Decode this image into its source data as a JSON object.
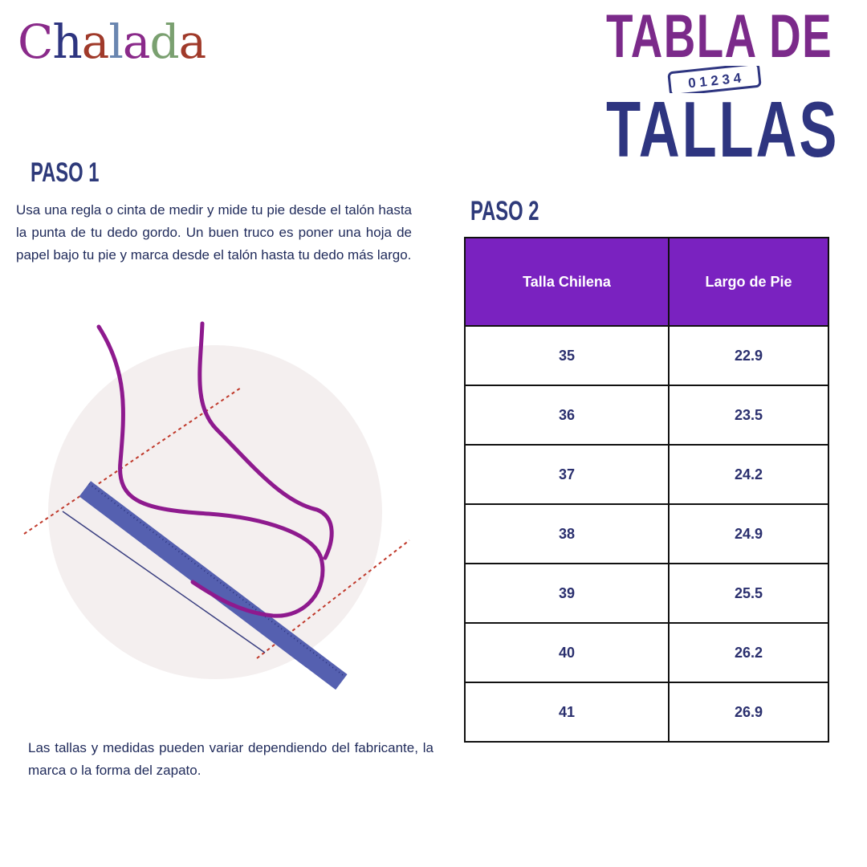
{
  "logo": {
    "text": "Chalada",
    "letters": [
      "C",
      "h",
      "a",
      "l",
      "a",
      "d",
      "a"
    ],
    "colors": [
      "#8a2a8a",
      "#2e3580",
      "#a03a2a",
      "#6a86b0",
      "#8a2a8a",
      "#7aa070",
      "#a03a2a"
    ]
  },
  "title": {
    "line1": "TABLA DE",
    "line2": "TALLAS",
    "ruler_digits": "0 1 2 3 4"
  },
  "step1": {
    "heading": "PASO 1",
    "text": "Usa una regla o cinta de medir y mide tu pie desde el talón hasta la punta de tu dedo gordo. Un buen truco es poner una hoja de papel bajo tu pie y marca desde el talón hasta tu dedo más largo."
  },
  "step2": {
    "heading": "PASO 2"
  },
  "table": {
    "headers": [
      "Talla Chilena",
      "Largo de Pie"
    ],
    "rows": [
      [
        "35",
        "22.9"
      ],
      [
        "36",
        "23.5"
      ],
      [
        "37",
        "24.2"
      ],
      [
        "38",
        "24.9"
      ],
      [
        "39",
        "25.5"
      ],
      [
        "40",
        "26.2"
      ],
      [
        "41",
        "26.9"
      ]
    ]
  },
  "note": "Las tallas y medidas pueden variar dependiendo del fabricante, la marca o la forma del zapato.",
  "colors": {
    "header_bg": "#7a22c0",
    "title_purple": "#7b2a8a",
    "title_navy": "#2e3580",
    "foot": "#8e1a8e",
    "ruler": "#5560b0"
  }
}
